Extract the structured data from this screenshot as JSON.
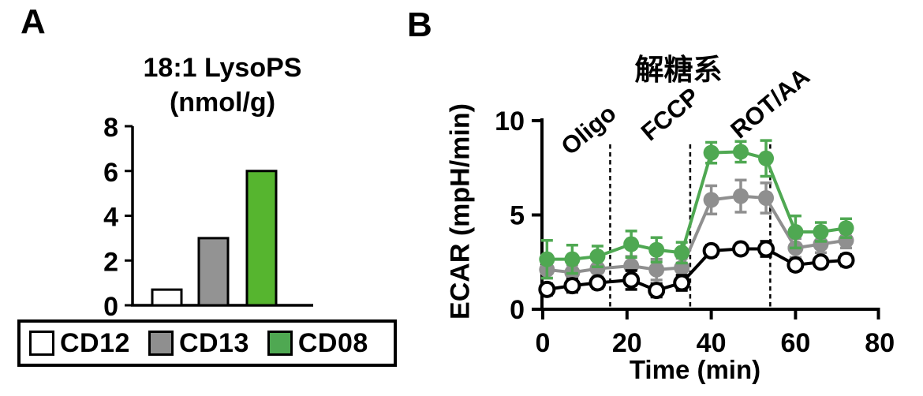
{
  "panels": {
    "a": {
      "label": "A",
      "title_line1": "18:1 LysoPS",
      "title_line2": "(nmol/g)"
    },
    "b": {
      "label": "B",
      "title": "解糖系",
      "ylabel": "ECAR (mpH/min)",
      "xlabel": "Time (min)"
    }
  },
  "legend": {
    "items": [
      {
        "label": "CD12",
        "color": "#ffffff"
      },
      {
        "label": "CD13",
        "color": "#8f8f8f"
      },
      {
        "label": "CD08",
        "color": "#4fa852"
      }
    ]
  },
  "colors": {
    "black": "#000000",
    "gray": "#8f8f8f",
    "green_line": "#4fa852",
    "green_bar": "#56b52f",
    "background": "#ffffff"
  },
  "chart_data": [
    {
      "type": "bar",
      "panel": "A",
      "title": "18:1 LysoPS (nmol/g)",
      "categories": [
        "CD12",
        "CD13",
        "CD08"
      ],
      "values": [
        0.7,
        3.0,
        6.0
      ],
      "bar_colors": [
        "#ffffff",
        "#939393",
        "#56b52f"
      ],
      "xlabel": "",
      "ylabel": "",
      "ylim": [
        0,
        8
      ],
      "yticks": [
        0,
        2,
        4,
        6,
        8
      ],
      "grid": false
    },
    {
      "type": "line",
      "panel": "B",
      "title": "解糖系",
      "xlabel": "Time (min)",
      "ylabel": "ECAR (mpH/min)",
      "x": [
        1,
        7,
        13,
        21,
        27,
        33,
        40,
        47,
        53,
        60,
        66,
        72
      ],
      "series": [
        {
          "name": "CD12",
          "marker": "open-circle",
          "color": "#000000",
          "values": [
            1.05,
            1.25,
            1.4,
            1.55,
            1.0,
            1.4,
            3.1,
            3.2,
            3.2,
            2.35,
            2.5,
            2.6
          ],
          "errors": [
            0.3,
            0.35,
            0.3,
            0.5,
            0.35,
            0.4,
            0.3,
            0.25,
            0.4,
            0.3,
            0.25,
            0.3
          ]
        },
        {
          "name": "CD13",
          "marker": "filled-circle",
          "color": "#8f8f8f",
          "values": [
            2.1,
            1.95,
            2.15,
            2.3,
            2.1,
            2.2,
            5.8,
            6.0,
            5.9,
            3.25,
            3.45,
            3.65
          ],
          "errors": [
            0.45,
            0.4,
            0.45,
            0.5,
            0.55,
            0.5,
            0.75,
            0.85,
            0.8,
            0.5,
            0.45,
            0.4
          ]
        },
        {
          "name": "CD08",
          "marker": "filled-circle",
          "color": "#4fa852",
          "values": [
            2.65,
            2.65,
            2.8,
            3.45,
            3.15,
            3.0,
            8.3,
            8.35,
            8.0,
            4.1,
            4.1,
            4.3
          ],
          "errors": [
            1.0,
            0.75,
            0.55,
            0.7,
            0.65,
            0.55,
            0.55,
            0.55,
            0.95,
            0.85,
            0.5,
            0.5
          ]
        }
      ],
      "annotations": [
        {
          "label": "Oligo",
          "x": 16
        },
        {
          "label": "FCCP",
          "x": 35
        },
        {
          "label": "ROT/AA",
          "x": 54
        }
      ],
      "xlim": [
        0,
        80
      ],
      "ylim": [
        0,
        10
      ],
      "xticks": [
        0,
        20,
        40,
        60,
        80
      ],
      "yticks": [
        0,
        5,
        10
      ],
      "grid": false,
      "legend_position": "bottom-left-box"
    }
  ]
}
